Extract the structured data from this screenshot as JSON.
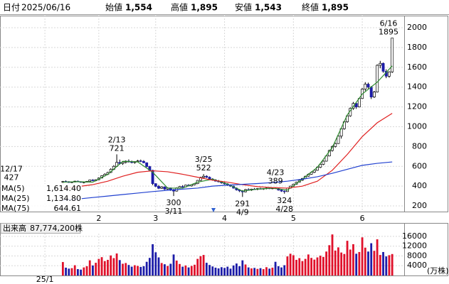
{
  "header": {
    "date_label": "日付",
    "date": "2025/06/16",
    "items": [
      {
        "label": "始値",
        "value": "1,554",
        "color": "#000000"
      },
      {
        "label": "高値",
        "value": "1,895",
        "color": "#e00000"
      },
      {
        "label": "安値",
        "value": "1,543",
        "color": "#008000"
      },
      {
        "label": "終値",
        "value": "1,895",
        "color": "#000000"
      }
    ]
  },
  "chart_data": [
    {
      "type": "candlestick",
      "candles": [
        [
          440,
          452,
          432,
          447
        ],
        [
          447,
          458,
          440,
          444
        ],
        [
          444,
          450,
          433,
          437
        ],
        [
          437,
          446,
          430,
          442
        ],
        [
          442,
          455,
          438,
          450
        ],
        [
          450,
          456,
          441,
          445
        ],
        [
          445,
          449,
          434,
          438
        ],
        [
          438,
          444,
          428,
          441
        ],
        [
          441,
          452,
          436,
          448
        ],
        [
          448,
          466,
          445,
          462
        ],
        [
          462,
          470,
          450,
          455
        ],
        [
          455,
          468,
          449,
          465
        ],
        [
          465,
          488,
          460,
          482
        ],
        [
          482,
          510,
          478,
          505
        ],
        [
          505,
          530,
          498,
          520
        ],
        [
          520,
          545,
          512,
          538
        ],
        [
          538,
          580,
          532,
          570
        ],
        [
          570,
          612,
          562,
          600
        ],
        [
          600,
          721,
          596,
          640
        ],
        [
          640,
          668,
          618,
          628
        ],
        [
          628,
          650,
          615,
          640
        ],
        [
          640,
          660,
          628,
          652
        ],
        [
          652,
          670,
          638,
          645
        ],
        [
          645,
          658,
          630,
          638
        ],
        [
          638,
          652,
          626,
          648
        ],
        [
          648,
          665,
          640,
          655
        ],
        [
          655,
          668,
          642,
          650
        ],
        [
          650,
          662,
          632,
          636
        ],
        [
          636,
          640,
          590,
          598
        ],
        [
          598,
          604,
          550,
          560
        ],
        [
          560,
          565,
          410,
          425
        ],
        [
          425,
          430,
          390,
          398
        ],
        [
          398,
          412,
          370,
          378
        ],
        [
          378,
          400,
          372,
          392
        ],
        [
          392,
          398,
          362,
          370
        ],
        [
          370,
          388,
          364,
          382
        ],
        [
          382,
          386,
          352,
          360
        ],
        [
          360,
          372,
          300,
          350
        ],
        [
          350,
          388,
          345,
          382
        ],
        [
          382,
          402,
          375,
          396
        ],
        [
          396,
          410,
          385,
          392
        ],
        [
          392,
          415,
          388,
          410
        ],
        [
          410,
          420,
          398,
          402
        ],
        [
          402,
          418,
          396,
          414
        ],
        [
          414,
          430,
          408,
          425
        ],
        [
          425,
          462,
          420,
          458
        ],
        [
          458,
          495,
          452,
          488
        ],
        [
          488,
          522,
          480,
          500
        ],
        [
          500,
          510,
          482,
          490
        ],
        [
          490,
          498,
          466,
          472
        ],
        [
          472,
          480,
          455,
          462
        ],
        [
          462,
          470,
          446,
          450
        ],
        [
          450,
          462,
          438,
          444
        ],
        [
          444,
          452,
          425,
          432
        ],
        [
          432,
          440,
          415,
          422
        ],
        [
          422,
          430,
          402,
          410
        ],
        [
          410,
          418,
          392,
          400
        ],
        [
          400,
          405,
          375,
          380
        ],
        [
          380,
          386,
          355,
          362
        ],
        [
          362,
          370,
          340,
          352
        ],
        [
          352,
          360,
          291,
          342
        ],
        [
          342,
          372,
          338,
          365
        ],
        [
          365,
          378,
          355,
          360
        ],
        [
          360,
          374,
          352,
          370
        ],
        [
          370,
          382,
          362,
          368
        ],
        [
          368,
          380,
          358,
          375
        ],
        [
          375,
          384,
          366,
          372
        ],
        [
          372,
          380,
          362,
          376
        ],
        [
          376,
          386,
          368,
          380
        ],
        [
          380,
          388,
          370,
          374
        ],
        [
          374,
          385,
          368,
          382
        ],
        [
          382,
          389,
          370,
          375
        ],
        [
          375,
          380,
          355,
          360
        ],
        [
          360,
          366,
          342,
          350
        ],
        [
          350,
          356,
          324,
          345
        ],
        [
          345,
          385,
          342,
          380
        ],
        [
          380,
          405,
          376,
          400
        ],
        [
          400,
          425,
          396,
          420
        ],
        [
          420,
          445,
          415,
          440
        ],
        [
          440,
          465,
          436,
          460
        ],
        [
          460,
          482,
          452,
          478
        ],
        [
          478,
          505,
          472,
          500
        ],
        [
          500,
          528,
          495,
          520
        ],
        [
          520,
          548,
          515,
          540
        ],
        [
          540,
          566,
          532,
          560
        ],
        [
          560,
          598,
          555,
          590
        ],
        [
          590,
          628,
          582,
          620
        ],
        [
          620,
          660,
          612,
          652
        ],
        [
          652,
          712,
          648,
          705
        ],
        [
          705,
          768,
          700,
          760
        ],
        [
          760,
          810,
          748,
          800
        ],
        [
          800,
          840,
          790,
          830
        ],
        [
          830,
          912,
          826,
          905
        ],
        [
          905,
          990,
          880,
          980
        ],
        [
          980,
          1060,
          970,
          1050
        ],
        [
          1050,
          1120,
          1040,
          1110
        ],
        [
          1110,
          1195,
          1100,
          1185
        ],
        [
          1185,
          1250,
          1170,
          1235
        ],
        [
          1235,
          1240,
          1180,
          1200
        ],
        [
          1200,
          1290,
          1195,
          1285
        ],
        [
          1285,
          1390,
          1280,
          1380
        ],
        [
          1380,
          1450,
          1360,
          1430
        ],
        [
          1430,
          1445,
          1385,
          1400
        ],
        [
          1400,
          1410,
          1280,
          1300
        ],
        [
          1300,
          1362,
          1290,
          1350
        ],
        [
          1350,
          1630,
          1345,
          1620
        ],
        [
          1620,
          1665,
          1590,
          1640
        ],
        [
          1640,
          1648,
          1545,
          1560
        ],
        [
          1560,
          1580,
          1490,
          1510
        ],
        [
          1510,
          1560,
          1495,
          1554
        ],
        [
          1554,
          1895,
          1543,
          1895
        ]
      ],
      "up_color": "#ffffff",
      "down_color": "#1c1ca8",
      "wick_color": "#000000",
      "xlim": [
        -21,
        114
      ],
      "xticks": [
        {
          "value": 12,
          "label": "2"
        },
        {
          "value": 31,
          "label": "3"
        },
        {
          "value": 54,
          "label": "4"
        },
        {
          "value": 77,
          "label": "5"
        },
        {
          "value": 100,
          "label": "6"
        }
      ],
      "ylim": [
        143,
        2122
      ],
      "yticks": [
        200,
        400,
        600,
        800,
        1000,
        1200,
        1400,
        1600,
        1800,
        2000
      ],
      "grid": true,
      "series": [
        {
          "name": "MA(5)",
          "color": "#2e8b2e",
          "legend_value": "1,614.40",
          "x": [
            0,
            5,
            10,
            15,
            20,
            25,
            30,
            35,
            40,
            45,
            50,
            55,
            60,
            65,
            70,
            75,
            80,
            85,
            90,
            95,
            100,
            105,
            110
          ],
          "values": [
            440,
            445,
            440,
            520,
            650,
            645,
            540,
            380,
            380,
            440,
            470,
            420,
            350,
            370,
            380,
            360,
            470,
            590,
            790,
            1120,
            1330,
            1450,
            1614.4
          ]
        },
        {
          "name": "MA(25)",
          "color": "#e02020",
          "legend_value": "1,134.80",
          "x": [
            0,
            5,
            10,
            15,
            20,
            25,
            30,
            35,
            40,
            45,
            50,
            55,
            60,
            65,
            70,
            75,
            80,
            85,
            90,
            95,
            100,
            105,
            110
          ],
          "values": [
            380,
            395,
            415,
            450,
            500,
            540,
            555,
            545,
            520,
            490,
            460,
            440,
            415,
            395,
            385,
            380,
            400,
            450,
            560,
            720,
            900,
            1040,
            1134.8
          ]
        },
        {
          "name": "MA(75)",
          "color": "#2040d0",
          "legend_value": "644.61",
          "x": [
            0,
            5,
            10,
            15,
            20,
            25,
            30,
            35,
            40,
            45,
            50,
            55,
            60,
            65,
            70,
            75,
            80,
            85,
            90,
            95,
            100,
            105,
            110
          ],
          "values": [
            255,
            270,
            285,
            300,
            315,
            330,
            345,
            358,
            370,
            380,
            400,
            410,
            418,
            426,
            436,
            450,
            470,
            495,
            530,
            570,
            610,
            630,
            644.61
          ]
        }
      ],
      "annotations": [
        {
          "date": "12/17",
          "value": 427
        },
        {
          "date": "2/13",
          "value": 721
        },
        {
          "date": "3/11",
          "value": 300
        },
        {
          "date": "3/25",
          "value": 522
        },
        {
          "date": "4/9",
          "value": 291
        },
        {
          "date": "4/23",
          "value": 389
        },
        {
          "date": "4/28",
          "value": 324
        },
        {
          "date": "6/16",
          "value": 1895
        }
      ]
    },
    {
      "type": "bar",
      "title": "出来高",
      "value_label": "87,774,200株",
      "unit_label": "(万株)",
      "values": [
        5500,
        3200,
        2800,
        3000,
        4200,
        2600,
        2400,
        3300,
        3800,
        6200,
        4100,
        5200,
        6800,
        7500,
        5900,
        6400,
        8200,
        7100,
        9000,
        6300,
        4800,
        5100,
        4300,
        3600,
        4200,
        3900,
        3500,
        3800,
        5600,
        7200,
        12800,
        9500,
        7400,
        5100,
        4600,
        3900,
        4800,
        8600,
        6100,
        4700,
        3600,
        4100,
        3300,
        3900,
        4400,
        6800,
        7900,
        8400,
        5200,
        4300,
        3700,
        3200,
        2900,
        3400,
        3100,
        3600,
        2800,
        4100,
        4900,
        3800,
        6200,
        4500,
        3300,
        2900,
        3100,
        2700,
        3000,
        2600,
        3400,
        2800,
        3200,
        5600,
        3800,
        3300,
        4200,
        7800,
        8900,
        8300,
        6400,
        7100,
        5900,
        6800,
        8600,
        7200,
        6500,
        7400,
        8100,
        7600,
        9800,
        12400,
        16800,
        10200,
        11500,
        9400,
        8800,
        14200,
        10600,
        12800,
        8900,
        9600,
        15600,
        11400,
        9800,
        13200,
        10100,
        14800,
        8400,
        9600,
        7800,
        8300,
        8777.42
      ],
      "up_color": "#e0102a",
      "down_color": "#1c1ca8",
      "xlim": [
        -21,
        114
      ],
      "xticks": [
        {
          "value": -6,
          "label": "25/1"
        }
      ],
      "ylim": [
        0,
        21500
      ],
      "yticks": [
        4000,
        8000,
        12000,
        16000
      ]
    }
  ]
}
